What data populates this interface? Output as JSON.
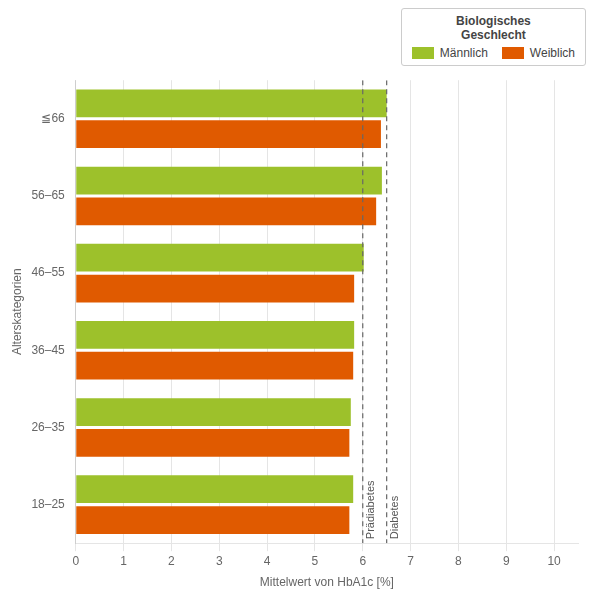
{
  "chart_data": {
    "type": "bar",
    "orientation": "horizontal",
    "categories": [
      "18–25",
      "26–35",
      "36–45",
      "46–55",
      "56–65",
      "≦66"
    ],
    "series": [
      {
        "name": "Männlich",
        "color": "#9dc12b",
        "values": [
          5.8,
          5.75,
          5.82,
          6.02,
          6.4,
          6.5
        ]
      },
      {
        "name": "Weiblich",
        "color": "#e05a00",
        "values": [
          5.72,
          5.72,
          5.8,
          5.82,
          6.28,
          6.38
        ]
      }
    ],
    "xlabel": "Mittelwert von HbA1c [%]",
    "ylabel": "Alterskategorien",
    "xlim": [
      0,
      10.5
    ],
    "xticks": [
      0,
      1,
      2,
      3,
      4,
      5,
      6,
      7,
      8,
      9,
      10
    ],
    "grid": true,
    "legend": "upper right",
    "legend_title": "Biologisches\nGeschlecht",
    "annotations": [
      {
        "x": 6.0,
        "label": "Prädiabetes"
      },
      {
        "x": 6.5,
        "label": "Diabetes"
      }
    ]
  }
}
